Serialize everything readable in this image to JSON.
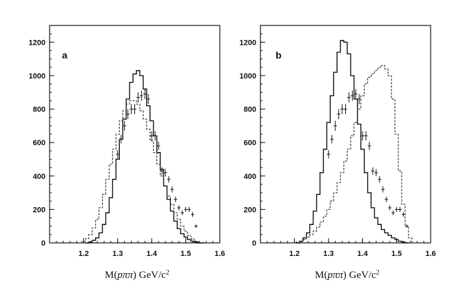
{
  "chart_data": [
    {
      "panel": "a",
      "type": "histogram",
      "xlabel_main": "M(",
      "xlabel_italic": "pππ",
      "xlabel_unit": ")  GeV/c",
      "xlabel_sup": "2",
      "xlim": [
        1.1,
        1.6
      ],
      "ylim": [
        0,
        1300
      ],
      "xticks": [
        1.2,
        1.3,
        1.4,
        1.5,
        1.6
      ],
      "xtick_labels": [
        "1.2",
        "1.3",
        "1.4",
        "1.5",
        "1.6"
      ],
      "yticks": [
        0,
        200,
        400,
        600,
        800,
        1000,
        1200
      ],
      "ytick_labels": [
        "0",
        "200",
        "400",
        "600",
        "800",
        "1000",
        "1200"
      ],
      "series": [
        {
          "name": "solid",
          "style": "solid",
          "x": [
            1.21,
            1.22,
            1.23,
            1.24,
            1.25,
            1.26,
            1.27,
            1.28,
            1.29,
            1.3,
            1.31,
            1.32,
            1.33,
            1.34,
            1.35,
            1.36,
            1.37,
            1.38,
            1.39,
            1.4,
            1.41,
            1.42,
            1.43,
            1.44,
            1.45,
            1.46,
            1.47,
            1.48,
            1.49,
            1.5,
            1.51,
            1.52,
            1.53,
            1.54,
            1.55
          ],
          "values": [
            0,
            5,
            15,
            30,
            60,
            110,
            180,
            270,
            380,
            500,
            620,
            740,
            860,
            960,
            1010,
            1030,
            1000,
            920,
            820,
            730,
            640,
            540,
            440,
            340,
            260,
            190,
            130,
            85,
            55,
            35,
            20,
            10,
            5,
            0,
            0
          ]
        },
        {
          "name": "dashed",
          "style": "dashed",
          "x": [
            1.19,
            1.2,
            1.21,
            1.22,
            1.23,
            1.24,
            1.25,
            1.26,
            1.27,
            1.28,
            1.29,
            1.3,
            1.31,
            1.32,
            1.33,
            1.34,
            1.35,
            1.36,
            1.37,
            1.38,
            1.39,
            1.4,
            1.41,
            1.42,
            1.43,
            1.44,
            1.45,
            1.46,
            1.47,
            1.48,
            1.49,
            1.5,
            1.51,
            1.52,
            1.53,
            1.54,
            1.55
          ],
          "values": [
            0,
            10,
            25,
            50,
            90,
            140,
            210,
            290,
            380,
            470,
            560,
            650,
            730,
            790,
            830,
            850,
            850,
            830,
            790,
            740,
            680,
            610,
            540,
            470,
            400,
            340,
            280,
            230,
            180,
            140,
            100,
            70,
            45,
            25,
            10,
            5,
            0
          ]
        }
      ],
      "points": {
        "name": "data",
        "x": [
          1.3,
          1.31,
          1.32,
          1.33,
          1.34,
          1.35,
          1.36,
          1.37,
          1.38,
          1.39,
          1.4,
          1.41,
          1.42,
          1.43,
          1.44,
          1.45,
          1.46,
          1.47,
          1.48,
          1.49,
          1.5,
          1.51,
          1.52,
          1.53
        ],
        "y": [
          530,
          620,
          700,
          770,
          800,
          800,
          870,
          880,
          890,
          860,
          640,
          640,
          580,
          430,
          420,
          380,
          320,
          260,
          210,
          180,
          200,
          200,
          170,
          100
        ],
        "xerr": 0.005,
        "yerr": [
          25,
          25,
          30,
          30,
          30,
          30,
          30,
          30,
          30,
          30,
          28,
          28,
          25,
          22,
          22,
          20,
          18,
          16,
          15,
          14,
          15,
          15,
          14,
          10
        ]
      }
    },
    {
      "panel": "b",
      "type": "histogram",
      "xlabel_main": "M(",
      "xlabel_italic": "pππ",
      "xlabel_unit": ")  GeV/c",
      "xlabel_sup": "2",
      "xlim": [
        1.1,
        1.6
      ],
      "ylim": [
        0,
        1300
      ],
      "xticks": [
        1.2,
        1.3,
        1.4,
        1.5,
        1.6
      ],
      "xtick_labels": [
        "1.2",
        "1.3",
        "1.4",
        "1.5",
        "1.6"
      ],
      "yticks": [
        0,
        200,
        400,
        600,
        800,
        1000,
        1200
      ],
      "ytick_labels": [
        "0",
        "200",
        "400",
        "600",
        "800",
        "1000",
        "1200"
      ],
      "series": [
        {
          "name": "solid",
          "style": "solid",
          "x": [
            1.21,
            1.22,
            1.23,
            1.24,
            1.25,
            1.26,
            1.27,
            1.28,
            1.29,
            1.3,
            1.31,
            1.32,
            1.33,
            1.34,
            1.35,
            1.36,
            1.37,
            1.38,
            1.39,
            1.4,
            1.41,
            1.42,
            1.43,
            1.44,
            1.45,
            1.46,
            1.47,
            1.48,
            1.49,
            1.5,
            1.51,
            1.52,
            1.53
          ],
          "values": [
            0,
            10,
            30,
            60,
            110,
            190,
            290,
            420,
            560,
            720,
            880,
            1020,
            1140,
            1210,
            1200,
            1130,
            1000,
            860,
            710,
            560,
            420,
            300,
            210,
            150,
            110,
            80,
            60,
            45,
            30,
            20,
            10,
            5,
            0
          ]
        },
        {
          "name": "dashed",
          "style": "dashed",
          "x": [
            1.2,
            1.21,
            1.22,
            1.23,
            1.24,
            1.25,
            1.26,
            1.27,
            1.28,
            1.29,
            1.3,
            1.31,
            1.32,
            1.33,
            1.34,
            1.35,
            1.36,
            1.37,
            1.38,
            1.39,
            1.4,
            1.41,
            1.42,
            1.43,
            1.44,
            1.45,
            1.46,
            1.47,
            1.48,
            1.49,
            1.5,
            1.51,
            1.52,
            1.53,
            1.54,
            1.55
          ],
          "values": [
            0,
            5,
            10,
            20,
            35,
            50,
            70,
            95,
            125,
            160,
            200,
            250,
            300,
            360,
            420,
            490,
            560,
            640,
            720,
            800,
            880,
            950,
            990,
            1010,
            1030,
            1050,
            1060,
            1040,
            1000,
            860,
            650,
            430,
            230,
            100,
            30,
            0
          ]
        }
      ],
      "points": {
        "name": "data",
        "x": [
          1.3,
          1.31,
          1.32,
          1.33,
          1.34,
          1.35,
          1.36,
          1.37,
          1.38,
          1.39,
          1.4,
          1.41,
          1.42,
          1.43,
          1.44,
          1.45,
          1.46,
          1.47,
          1.48,
          1.49,
          1.5,
          1.51,
          1.52,
          1.53
        ],
        "y": [
          530,
          620,
          700,
          770,
          800,
          800,
          870,
          880,
          890,
          860,
          640,
          640,
          580,
          430,
          420,
          380,
          320,
          260,
          210,
          180,
          200,
          200,
          170,
          100
        ],
        "xerr": 0.005,
        "yerr": [
          25,
          25,
          30,
          30,
          30,
          30,
          30,
          30,
          30,
          30,
          28,
          28,
          25,
          22,
          22,
          20,
          18,
          16,
          15,
          14,
          15,
          15,
          14,
          10
        ]
      }
    }
  ]
}
